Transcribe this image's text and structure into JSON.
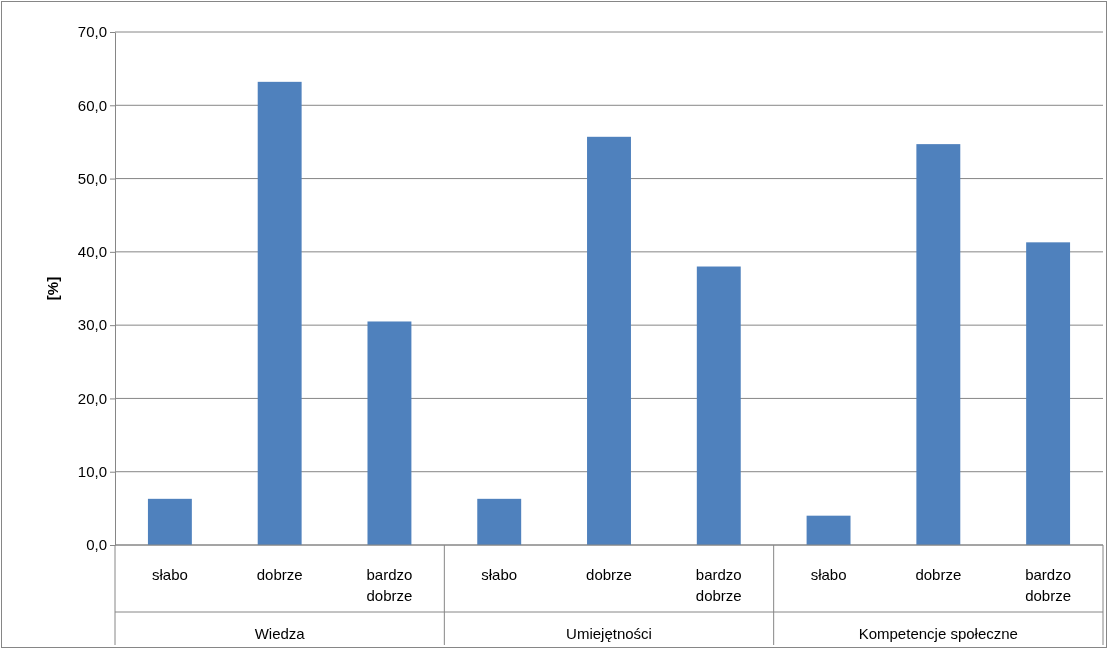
{
  "chart_data": {
    "type": "bar",
    "ylabel": "[%]",
    "categories": [
      "słabo",
      "dobrze",
      "bardzo dobrze",
      "słabo",
      "dobrze",
      "bardzo dobrze",
      "słabo",
      "dobrze",
      "bardzo dobrze"
    ],
    "values": [
      6.3,
      63.2,
      30.5,
      6.3,
      55.7,
      38.0,
      4.0,
      54.7,
      41.3
    ],
    "color": "#4f81bd",
    "ylim": [
      0,
      70
    ],
    "yticks": [
      {
        "value": 0,
        "label": "0,0"
      },
      {
        "value": 10,
        "label": "10,0"
      },
      {
        "value": 20,
        "label": "20,0"
      },
      {
        "value": 30,
        "label": "30,0"
      },
      {
        "value": 40,
        "label": "40,0"
      },
      {
        "value": 50,
        "label": "50,0"
      },
      {
        "value": 60,
        "label": "60,0"
      },
      {
        "value": 70,
        "label": "70,0"
      }
    ],
    "grid": "y",
    "annotations": [
      "Wiedza",
      "Umiejętności",
      "Kompetencje społeczne"
    ]
  }
}
